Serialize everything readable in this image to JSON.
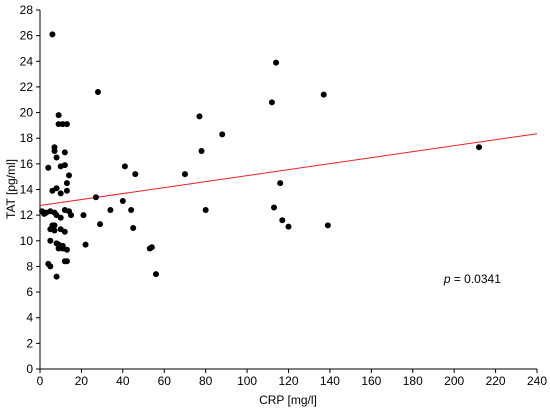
{
  "chart_data": {
    "type": "scatter",
    "xlabel": "CRP [mg/l]",
    "ylabel": "TAT [pg/ml]",
    "xlim": [
      0,
      240
    ],
    "ylim": [
      0,
      28
    ],
    "xticks": [
      0,
      20,
      40,
      60,
      80,
      100,
      120,
      140,
      160,
      180,
      200,
      220,
      240
    ],
    "yticks": [
      0,
      2,
      4,
      6,
      8,
      10,
      12,
      14,
      16,
      18,
      20,
      22,
      24,
      26,
      28
    ],
    "grid": false,
    "points": [
      [
        1,
        12.3
      ],
      [
        2,
        12.1
      ],
      [
        3,
        12.2
      ],
      [
        4,
        8.2
      ],
      [
        4,
        15.7
      ],
      [
        5,
        8.0
      ],
      [
        6,
        26.1
      ],
      [
        5,
        12.3
      ],
      [
        5,
        10.9
      ],
      [
        5,
        10.0
      ],
      [
        6,
        11.2
      ],
      [
        6,
        13.9
      ],
      [
        7,
        11.2
      ],
      [
        7,
        10.8
      ],
      [
        7,
        12.2
      ],
      [
        7,
        17.0
      ],
      [
        7,
        17.3
      ],
      [
        8,
        12.0
      ],
      [
        8,
        14.1
      ],
      [
        8,
        9.8
      ],
      [
        8,
        7.2
      ],
      [
        8,
        16.5
      ],
      [
        9,
        19.8
      ],
      [
        9,
        19.1
      ],
      [
        9,
        9.4
      ],
      [
        9,
        9.7
      ],
      [
        10,
        10.9
      ],
      [
        10,
        15.8
      ],
      [
        10,
        13.7
      ],
      [
        10,
        11.8
      ],
      [
        11,
        19.1
      ],
      [
        11,
        9.4
      ],
      [
        11,
        9.6
      ],
      [
        12,
        12.4
      ],
      [
        12,
        10.7
      ],
      [
        12,
        15.9
      ],
      [
        12,
        8.4
      ],
      [
        12,
        16.9
      ],
      [
        13,
        19.1
      ],
      [
        13,
        13.9
      ],
      [
        13,
        8.4
      ],
      [
        13,
        14.5
      ],
      [
        13,
        9.3
      ],
      [
        14,
        15.1
      ],
      [
        14,
        12.3
      ],
      [
        15,
        12.0
      ],
      [
        21,
        12.0
      ],
      [
        22,
        9.7
      ],
      [
        27,
        13.4
      ],
      [
        28,
        21.6
      ],
      [
        29,
        11.3
      ],
      [
        34,
        12.4
      ],
      [
        40,
        13.1
      ],
      [
        41,
        15.8
      ],
      [
        44,
        12.4
      ],
      [
        45,
        11.0
      ],
      [
        46,
        15.2
      ],
      [
        53,
        9.4
      ],
      [
        54,
        9.5
      ],
      [
        56,
        7.4
      ],
      [
        70,
        15.2
      ],
      [
        77,
        19.7
      ],
      [
        78,
        17.0
      ],
      [
        80,
        12.4
      ],
      [
        88,
        18.3
      ],
      [
        112,
        20.8
      ],
      [
        113,
        12.6
      ],
      [
        114,
        23.9
      ],
      [
        116,
        14.5
      ],
      [
        117,
        11.6
      ],
      [
        120,
        11.1
      ],
      [
        137,
        21.4
      ],
      [
        139,
        11.2
      ],
      [
        212,
        17.3
      ]
    ],
    "regression": {
      "x": [
        0,
        240
      ],
      "y": [
        12.75,
        18.35
      ],
      "color": "#e8202a"
    },
    "annotation": {
      "italic_part": "p",
      "rest": " = 0.0341",
      "x": 195,
      "y": 6.7
    },
    "colors": {
      "points": "#000000",
      "axes": "#000000"
    }
  }
}
